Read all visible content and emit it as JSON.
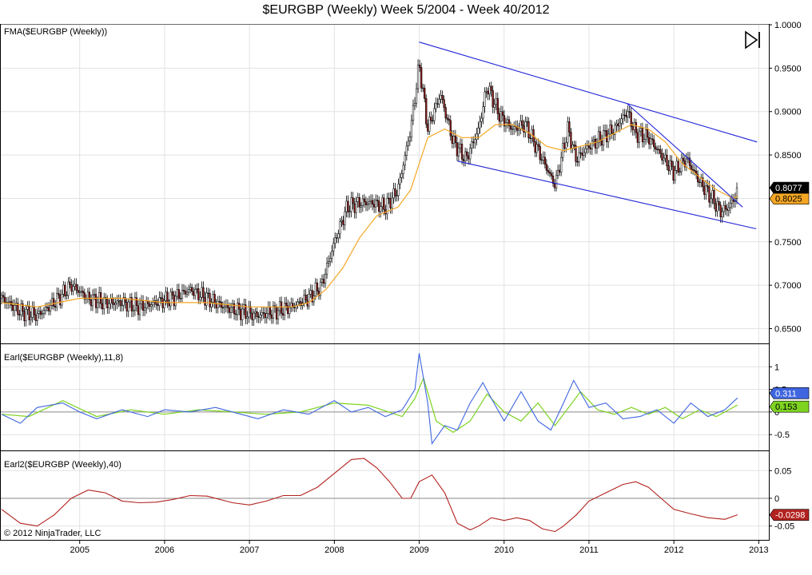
{
  "title": "$EURGBP (Weekly)  Week 5/2004 - Week 40/2012",
  "copyright": "© 2012 NinjaTrader, LLC",
  "colors": {
    "candle_up": "#000000",
    "candle_down": "#8b1a1a",
    "fma": "#f5a623",
    "channel": "#1f23d8",
    "earl_fast": "#3f66e0",
    "earl_slow": "#7ed321",
    "earl2": "#b2221f",
    "last_price_badge": "#000000",
    "fma_badge": "#f5a623"
  },
  "icons": {
    "play_pause": "skip-forward-icon"
  },
  "chart_data": [
    {
      "type": "candlestick",
      "panel": "price",
      "label": "FMA($EURGBP (Weekly))",
      "x_axis": {
        "ticks": [
          "2005",
          "2006",
          "2007",
          "2008",
          "2009",
          "2010",
          "2011",
          "2012",
          "2013"
        ],
        "range": [
          2004.08,
          2013.1
        ]
      },
      "y_axis": {
        "ticks": [
          "0.6500",
          "0.7000",
          "0.7500",
          "0.8000",
          "0.8500",
          "0.9000",
          "0.9500",
          "1.0000"
        ],
        "range": [
          0.633,
          1.0
        ]
      },
      "series": [
        {
          "name": "$EURGBP (Weekly)",
          "x": [
            2004.08,
            2004.3,
            2004.5,
            2004.7,
            2004.9,
            2005.1,
            2005.3,
            2005.5,
            2005.7,
            2005.9,
            2006.1,
            2006.3,
            2006.5,
            2006.7,
            2006.9,
            2007.1,
            2007.3,
            2007.5,
            2007.7,
            2007.85,
            2008.0,
            2008.15,
            2008.3,
            2008.45,
            2008.6,
            2008.75,
            2008.9,
            2009.0,
            2009.1,
            2009.25,
            2009.4,
            2009.55,
            2009.7,
            2009.8,
            2009.95,
            2010.1,
            2010.25,
            2010.4,
            2010.5,
            2010.6,
            2010.75,
            2010.85,
            2011.0,
            2011.15,
            2011.3,
            2011.45,
            2011.55,
            2011.7,
            2011.85,
            2012.0,
            2012.15,
            2012.3,
            2012.45,
            2012.55,
            2012.65,
            2012.75
          ],
          "close": [
            0.685,
            0.67,
            0.665,
            0.68,
            0.7,
            0.685,
            0.68,
            0.68,
            0.675,
            0.68,
            0.685,
            0.695,
            0.685,
            0.675,
            0.67,
            0.665,
            0.67,
            0.675,
            0.685,
            0.7,
            0.75,
            0.79,
            0.795,
            0.795,
            0.79,
            0.81,
            0.88,
            0.955,
            0.88,
            0.92,
            0.865,
            0.845,
            0.88,
            0.93,
            0.895,
            0.88,
            0.885,
            0.855,
            0.835,
            0.815,
            0.88,
            0.845,
            0.86,
            0.87,
            0.88,
            0.9,
            0.875,
            0.87,
            0.85,
            0.83,
            0.845,
            0.82,
            0.8,
            0.785,
            0.79,
            0.8077
          ]
        },
        {
          "name": "FMA",
          "x": [
            2004.08,
            2004.5,
            2005.0,
            2005.5,
            2006.0,
            2006.5,
            2007.0,
            2007.5,
            2007.7,
            2007.9,
            2008.1,
            2008.3,
            2008.5,
            2008.75,
            2008.9,
            2009.0,
            2009.1,
            2009.3,
            2009.5,
            2009.7,
            2009.9,
            2010.1,
            2010.3,
            2010.5,
            2010.7,
            2010.9,
            2011.1,
            2011.3,
            2011.5,
            2011.7,
            2011.9,
            2012.1,
            2012.3,
            2012.5,
            2012.7,
            2012.75
          ],
          "y": [
            0.68,
            0.675,
            0.685,
            0.685,
            0.68,
            0.68,
            0.675,
            0.675,
            0.68,
            0.695,
            0.72,
            0.755,
            0.78,
            0.79,
            0.81,
            0.84,
            0.87,
            0.88,
            0.87,
            0.87,
            0.885,
            0.885,
            0.875,
            0.86,
            0.855,
            0.86,
            0.865,
            0.875,
            0.885,
            0.88,
            0.865,
            0.84,
            0.825,
            0.81,
            0.8,
            0.8025
          ]
        },
        {
          "name": "Upper channel",
          "x": [
            2009.0,
            2012.98
          ],
          "y": [
            0.98,
            0.865
          ]
        },
        {
          "name": "Lower channel",
          "x": [
            2009.45,
            2012.97
          ],
          "y": [
            0.843,
            0.765
          ]
        },
        {
          "name": "Inner trendline",
          "x": [
            2011.45,
            2012.81
          ],
          "y": [
            0.909,
            0.79
          ]
        }
      ],
      "badges": [
        {
          "value": "0.8077"
        },
        {
          "value": "0.8025"
        }
      ]
    },
    {
      "type": "line",
      "panel": "earl",
      "label": "Earl($EURGBP (Weekly),11,8)",
      "y_axis": {
        "ticks": [
          "1",
          "0.5",
          "0",
          "-0.5"
        ],
        "range": [
          -0.85,
          1.5
        ]
      },
      "series": [
        {
          "name": "fast",
          "x": [
            2004.08,
            2004.3,
            2004.5,
            2004.8,
            2005.0,
            2005.2,
            2005.5,
            2005.8,
            2006.0,
            2006.3,
            2006.6,
            2006.9,
            2007.1,
            2007.4,
            2007.7,
            2008.0,
            2008.2,
            2008.4,
            2008.6,
            2008.8,
            2008.95,
            2009.0,
            2009.1,
            2009.15,
            2009.3,
            2009.45,
            2009.6,
            2009.75,
            2009.85,
            2010.0,
            2010.2,
            2010.4,
            2010.55,
            2010.7,
            2010.82,
            2011.0,
            2011.2,
            2011.4,
            2011.6,
            2011.8,
            2012.0,
            2012.2,
            2012.4,
            2012.6,
            2012.75
          ],
          "y": [
            -0.05,
            -0.25,
            0.1,
            0.2,
            0.0,
            -0.15,
            0.05,
            -0.1,
            0.05,
            0.0,
            0.1,
            -0.05,
            -0.15,
            0.05,
            -0.05,
            0.25,
            0.0,
            0.1,
            -0.1,
            0.05,
            0.5,
            1.3,
            0.2,
            -0.7,
            -0.3,
            -0.4,
            0.2,
            0.65,
            0.3,
            -0.2,
            0.45,
            -0.2,
            -0.4,
            0.2,
            0.7,
            0.1,
            0.2,
            -0.15,
            -0.1,
            0.05,
            -0.25,
            0.2,
            -0.1,
            0.05,
            0.311
          ]
        },
        {
          "name": "slow",
          "x": [
            2004.08,
            2004.4,
            2004.8,
            2005.2,
            2005.6,
            2006.0,
            2006.4,
            2006.8,
            2007.2,
            2007.6,
            2008.0,
            2008.4,
            2008.8,
            2008.95,
            2009.05,
            2009.2,
            2009.4,
            2009.6,
            2009.8,
            2010.0,
            2010.2,
            2010.4,
            2010.6,
            2010.8,
            2010.9,
            2011.1,
            2011.3,
            2011.5,
            2011.7,
            2011.9,
            2012.1,
            2012.3,
            2012.5,
            2012.75
          ],
          "y": [
            -0.05,
            -0.1,
            0.25,
            -0.1,
            0.05,
            -0.05,
            0.05,
            0.0,
            -0.05,
            0.0,
            0.2,
            0.15,
            -0.1,
            0.3,
            0.75,
            -0.2,
            -0.45,
            -0.2,
            0.4,
            0.0,
            -0.2,
            0.2,
            -0.3,
            0.2,
            0.45,
            0.05,
            -0.05,
            0.1,
            -0.05,
            0.1,
            -0.15,
            0.05,
            -0.1,
            0.153
          ]
        }
      ],
      "badges": [
        {
          "value": "0.311"
        },
        {
          "value": "0.153"
        }
      ]
    },
    {
      "type": "line",
      "panel": "earl2",
      "label": "Earl2($EURGBP (Weekly),40)",
      "y_axis": {
        "ticks": [
          "0.05",
          "0",
          "-0.05"
        ],
        "range": [
          -0.075,
          0.085
        ]
      },
      "series": [
        {
          "name": "earl2",
          "x": [
            2004.08,
            2004.3,
            2004.5,
            2004.7,
            2004.9,
            2005.1,
            2005.3,
            2005.5,
            2005.7,
            2005.9,
            2006.1,
            2006.3,
            2006.5,
            2006.8,
            2007.0,
            2007.2,
            2007.4,
            2007.6,
            2007.8,
            2008.0,
            2008.2,
            2008.35,
            2008.5,
            2008.65,
            2008.8,
            2008.9,
            2009.0,
            2009.15,
            2009.3,
            2009.45,
            2009.6,
            2009.7,
            2009.85,
            2010.0,
            2010.15,
            2010.3,
            2010.45,
            2010.6,
            2010.7,
            2010.85,
            2011.0,
            2011.2,
            2011.4,
            2011.55,
            2011.7,
            2011.85,
            2012.0,
            2012.2,
            2012.4,
            2012.6,
            2012.75
          ],
          "y": [
            -0.02,
            -0.045,
            -0.05,
            -0.03,
            0.0,
            0.015,
            0.01,
            -0.005,
            -0.008,
            -0.007,
            -0.002,
            0.005,
            0.004,
            -0.008,
            -0.012,
            -0.005,
            0.005,
            0.005,
            0.02,
            0.045,
            0.07,
            0.072,
            0.055,
            0.03,
            0.0,
            0.0,
            0.03,
            0.042,
            0.01,
            -0.045,
            -0.057,
            -0.05,
            -0.035,
            -0.04,
            -0.035,
            -0.04,
            -0.055,
            -0.06,
            -0.05,
            -0.03,
            -0.005,
            0.01,
            0.025,
            0.03,
            0.02,
            0.0,
            -0.02,
            -0.028,
            -0.035,
            -0.038,
            -0.0298
          ]
        }
      ],
      "badges": [
        {
          "value": "-0.0298"
        }
      ]
    }
  ]
}
